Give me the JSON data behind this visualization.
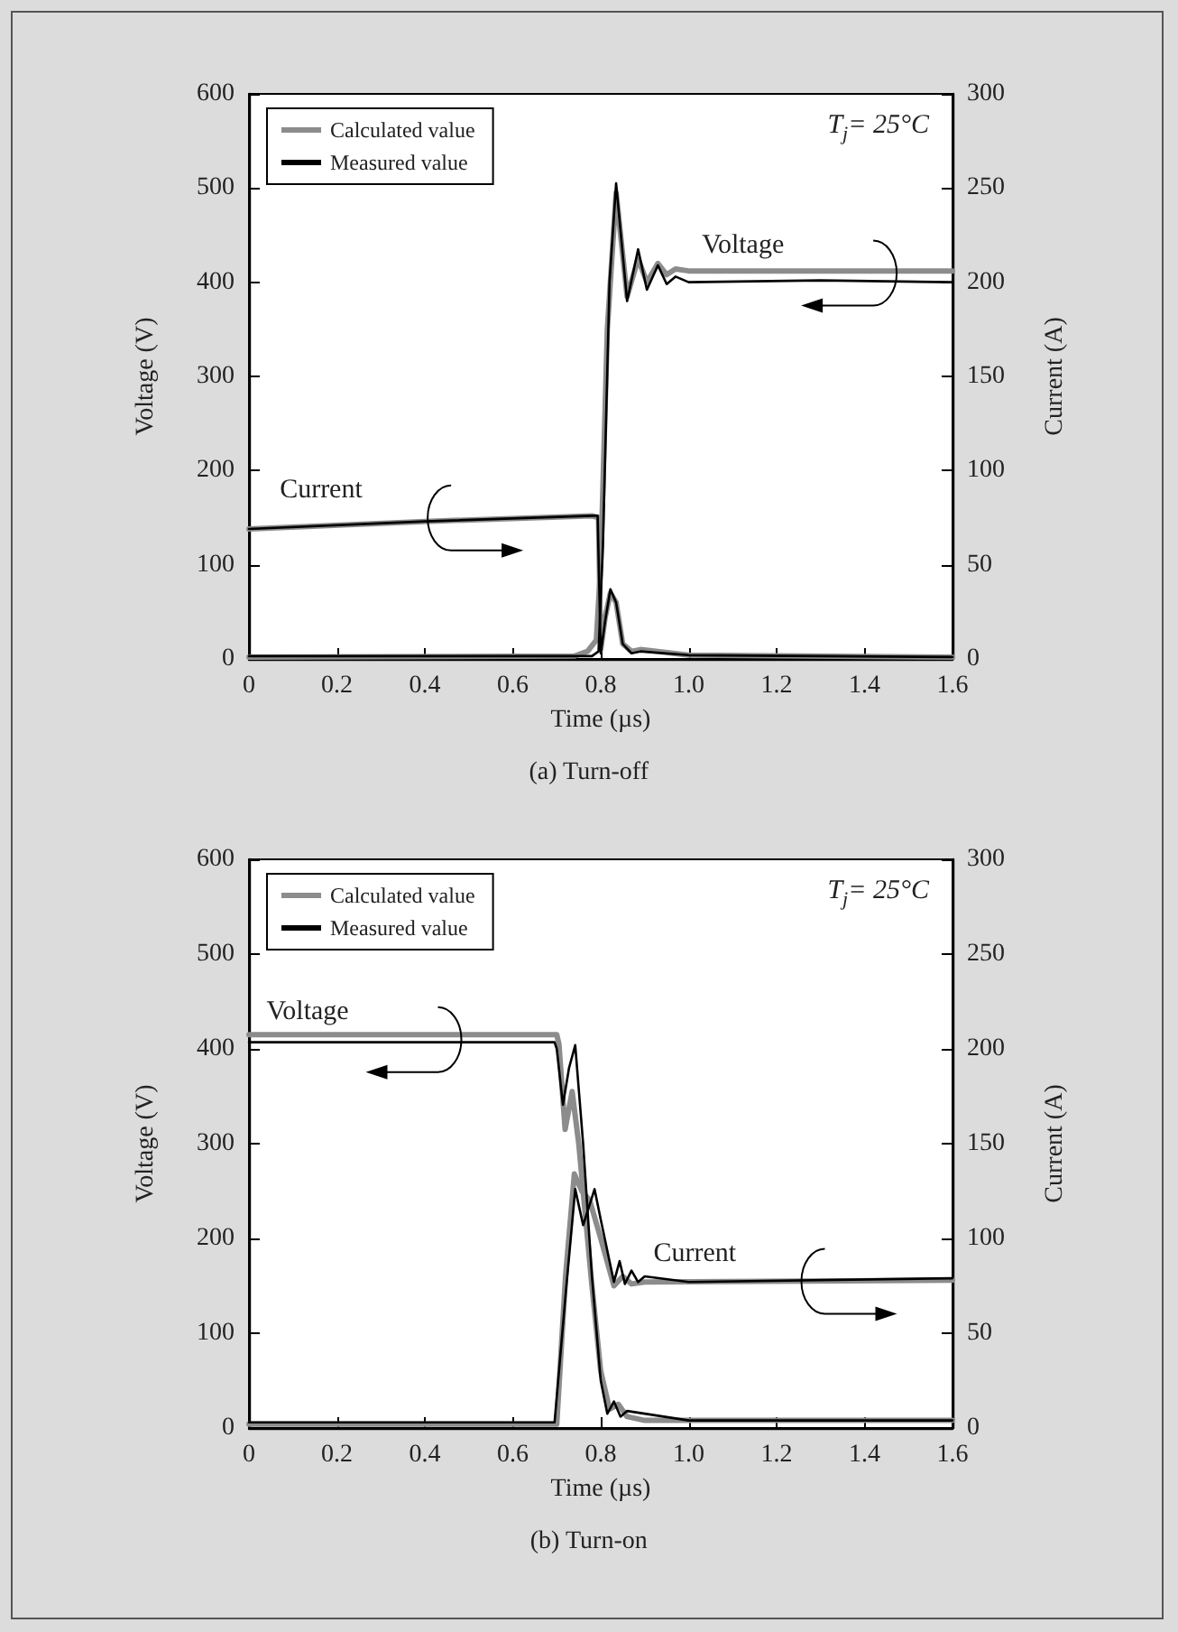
{
  "chart_data": [
    {
      "type": "line",
      "title": "(a) Turn-off",
      "xlabel": "Time (µs)",
      "ylabel": "Voltage (V)",
      "y2label": "Current (A)",
      "annotations": [
        "T$_{j}$= 25°C",
        "Voltage",
        "Current"
      ],
      "series": [
        {
          "name": "Calculated value",
          "color": "#8c8c8c",
          "x": [
            0,
            0.74,
            0.77,
            0.79,
            0.8,
            0.815,
            0.835,
            0.86,
            0.885,
            0.905,
            0.93,
            0.95,
            0.97,
            1.0,
            1.6
          ],
          "values": [
            2,
            3,
            8,
            20,
            100,
            350,
            495,
            385,
            425,
            400,
            420,
            408,
            414,
            412,
            412
          ]
        },
        {
          "name": "Measured value",
          "color": "#000000",
          "x": [
            0,
            0.78,
            0.795,
            0.805,
            0.82,
            0.835,
            0.86,
            0.885,
            0.905,
            0.93,
            0.95,
            0.97,
            1.0,
            1.3,
            1.6
          ],
          "values": [
            3,
            3,
            8,
            120,
            400,
            505,
            380,
            435,
            392,
            418,
            398,
            406,
            400,
            402,
            400
          ]
        },
        {
          "color": "#8c8c8c",
          "axis": "y2",
          "x": [
            0,
            0.4,
            0.78,
            0.795,
            0.8,
            0.81,
            0.822,
            0.835,
            0.85,
            0.87,
            0.89,
            1.0,
            1.6
          ],
          "values": [
            69,
            73,
            76,
            75,
            5,
            22,
            35,
            30,
            8,
            4,
            5,
            2,
            1
          ]
        },
        {
          "color": "#000000",
          "axis": "y2",
          "x": [
            0,
            0.4,
            0.78,
            0.793,
            0.8,
            0.81,
            0.822,
            0.835,
            0.85,
            0.87,
            0.89,
            1.0,
            1.6
          ],
          "values": [
            69,
            73,
            76,
            76,
            3,
            20,
            37,
            30,
            8,
            3,
            4,
            2,
            1
          ]
        }
      ],
      "xlim": [
        0,
        1.6
      ],
      "xticks": [
        0,
        0.2,
        0.4,
        0.6,
        0.8,
        {
          "value": 1,
          "label": "1.0"
        },
        1.2,
        1.4,
        1.6
      ],
      "ylim": [
        0,
        600
      ],
      "yticks": [
        0,
        100,
        200,
        300,
        400,
        500,
        600
      ],
      "y2lim": [
        0,
        300
      ],
      "y2ticks": [
        0,
        50,
        100,
        150,
        200,
        250,
        300
      ],
      "legend": "top left",
      "grid": false,
      "marker": "none",
      "line_style": "solid"
    },
    {
      "type": "line",
      "title": "(b) Turn-on",
      "xlabel": "Time (µs)",
      "ylabel": "Voltage (V)",
      "y2label": "Current (A)",
      "annotations": [
        "T$_{j}$= 25°C",
        "Voltage",
        "Current"
      ],
      "series": [
        {
          "name": "Calculated value",
          "color": "#8c8c8c",
          "x": [
            0,
            0.7,
            0.705,
            0.719,
            0.735,
            0.75,
            0.78,
            0.8,
            0.82,
            0.84,
            0.86,
            0.9,
            1.6
          ],
          "values": [
            415,
            415,
            405,
            315,
            355,
            300,
            150,
            60,
            20,
            25,
            12,
            8,
            8
          ]
        },
        {
          "name": "Measured value",
          "color": "#000000",
          "x": [
            0,
            0.695,
            0.7,
            0.714,
            0.728,
            0.742,
            0.76,
            0.78,
            0.8,
            0.815,
            0.83,
            0.845,
            0.86,
            1.0,
            1.6
          ],
          "values": [
            407,
            407,
            400,
            341,
            380,
            404,
            300,
            160,
            50,
            15,
            28,
            12,
            18,
            8,
            8
          ]
        },
        {
          "color": "#8c8c8c",
          "axis": "y2",
          "x": [
            0,
            0.7,
            0.72,
            0.74,
            0.757,
            0.775,
            0.8,
            0.83,
            0.85,
            0.87,
            0.9,
            1.6
          ],
          "values": [
            2,
            2,
            80,
            134,
            125,
            120,
            100,
            75,
            80,
            76,
            77,
            78
          ]
        },
        {
          "color": "#000000",
          "axis": "y2",
          "x": [
            0,
            0.695,
            0.72,
            0.742,
            0.76,
            0.786,
            0.8,
            0.83,
            0.843,
            0.855,
            0.87,
            0.885,
            0.9,
            1.0,
            1.6
          ],
          "values": [
            3,
            3,
            70,
            126,
            107,
            126,
            110,
            77,
            88,
            76,
            83,
            77,
            80,
            77,
            79
          ]
        }
      ],
      "xlim": [
        0,
        1.6
      ],
      "xticks": [
        0,
        0.2,
        0.4,
        0.6,
        0.8,
        {
          "value": 1,
          "label": "1.0"
        },
        1.2,
        1.4,
        1.6
      ],
      "ylim": [
        0,
        600
      ],
      "yticks": [
        0,
        100,
        200,
        300,
        400,
        500,
        600
      ],
      "y2lim": [
        0,
        300
      ],
      "y2ticks": [
        0,
        50,
        100,
        150,
        200,
        250,
        300
      ],
      "legend": "top left",
      "grid": false,
      "marker": "none",
      "line_style": "solid"
    }
  ]
}
